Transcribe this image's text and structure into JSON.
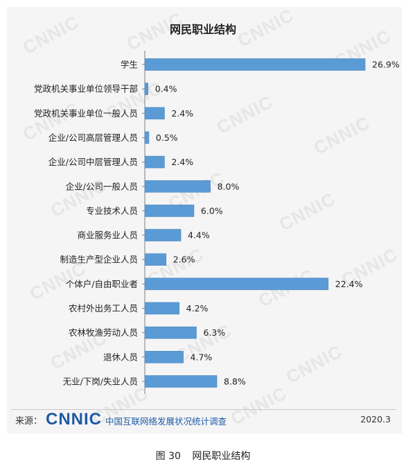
{
  "source": {
    "label": "来源：",
    "logo_text": "CNNIC",
    "org": "中国互联网络发展状况统计调查",
    "date": "2020.3"
  },
  "caption": {
    "figure": "图  30",
    "text": "网民职业结构"
  },
  "watermark": "CNNIC",
  "colors": {
    "bar": "#5b9bd5",
    "bar_stroke": "#4a86bd",
    "axis": "#7f7f7f",
    "accent": "#1d5aa6"
  },
  "chart_data": {
    "type": "bar",
    "orientation": "horizontal",
    "title": "网民职业结构",
    "xlabel": "",
    "ylabel": "",
    "unit": "%",
    "xlim": [
      0,
      27.5
    ],
    "grid": false,
    "legend": "none",
    "categories": [
      "学生",
      "党政机关事业单位领导干部",
      "党政机关事业单位一般人员",
      "企业/公司高层管理人员",
      "企业/公司中层管理人员",
      "企业/公司一般人员",
      "专业技术人员",
      "商业服务业人员",
      "制造生产型企业人员",
      "个体户/自由职业者",
      "农村外出务工人员",
      "农林牧渔劳动人员",
      "退休人员",
      "无业/下岗/失业人员"
    ],
    "values": [
      26.9,
      0.4,
      2.4,
      0.5,
      2.4,
      8.0,
      6.0,
      4.4,
      2.6,
      22.4,
      4.2,
      6.3,
      4.7,
      8.8
    ],
    "data_labels": [
      "26.9%",
      "0.4%",
      "2.4%",
      "0.5%",
      "2.4%",
      "8.0%",
      "6.0%",
      "4.4%",
      "2.6%",
      "22.4%",
      "4.2%",
      "6.3%",
      "4.7%",
      "8.8%"
    ]
  }
}
